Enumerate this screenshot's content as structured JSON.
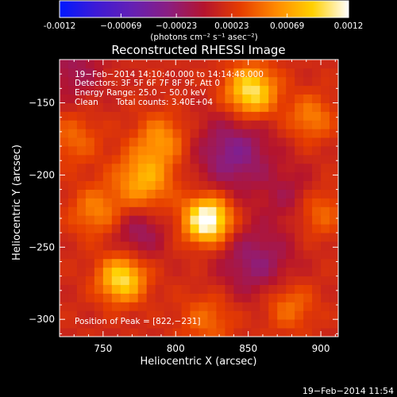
{
  "chart_data": {
    "type": "heatmap",
    "title": "Reconstructed RHESSI Image",
    "xlabel": "Heliocentric X (arcsec)",
    "ylabel": "Heliocentric Y (arcsec)",
    "xlim": [
      720,
      912
    ],
    "ylim": [
      -312,
      -120
    ],
    "x_ticks": [
      750,
      800,
      850,
      900
    ],
    "y_ticks": [
      -150,
      -200,
      -250,
      -300
    ],
    "colorbar": {
      "range": [
        -0.0012,
        0.0012
      ],
      "tick_values": [
        -0.0012,
        -0.00069,
        -0.00023,
        0.00023,
        0.00069,
        0.0012
      ],
      "tick_labels": [
        "-0.0012",
        "−0.00069",
        "−0.00023",
        "0.00023",
        "0.00069",
        "0.0012"
      ],
      "units": "(photons cm⁻² s⁻¹ asec⁻²)",
      "colors": [
        "#0018ff",
        "#3d1ad6",
        "#6420b4",
        "#8a1e82",
        "#b4142e",
        "#e63d00",
        "#ff8a00",
        "#ffd000",
        "#ffffff"
      ]
    },
    "annotations": {
      "time_range": "19−Feb−2014 14:10:40.000 to 14:14:48.000",
      "detectors": "Detectors: 3F 5F 6F 7F 8F 9F, Att 0",
      "energy": "Energy Range: 25.0 − 50.0 keV",
      "clean_label": "Clean",
      "total_counts": "Total counts: 3.40E+04",
      "peak": "Position of Peak = [822,−231]"
    },
    "sources": [
      {
        "x": 822,
        "y": -231,
        "amplitude": 0.0012,
        "sigma": 11
      },
      {
        "x": 852,
        "y": -142,
        "amplitude": 0.0009,
        "sigma": 12
      },
      {
        "x": 763,
        "y": -272,
        "amplitude": 0.00085,
        "sigma": 11
      },
      {
        "x": 778,
        "y": -203,
        "amplitude": 0.0006,
        "sigma": 14
      },
      {
        "x": 790,
        "y": -175,
        "amplitude": 0.00045,
        "sigma": 12
      },
      {
        "x": 745,
        "y": -225,
        "amplitude": 0.0004,
        "sigma": 12
      },
      {
        "x": 893,
        "y": -160,
        "amplitude": 0.0004,
        "sigma": 11
      },
      {
        "x": 898,
        "y": -225,
        "amplitude": 0.00035,
        "sigma": 12
      },
      {
        "x": 878,
        "y": -290,
        "amplitude": 0.00035,
        "sigma": 12
      },
      {
        "x": 822,
        "y": -300,
        "amplitude": 0.0003,
        "sigma": 13
      },
      {
        "x": 730,
        "y": -175,
        "amplitude": 0.0003,
        "sigma": 12
      },
      {
        "x": 840,
        "y": -185,
        "amplitude": -0.0005,
        "sigma": 18
      },
      {
        "x": 775,
        "y": -240,
        "amplitude": -0.00035,
        "sigma": 12
      },
      {
        "x": 730,
        "y": -128,
        "amplitude": -0.0003,
        "sigma": 14
      },
      {
        "x": 855,
        "y": -260,
        "amplitude": -0.0004,
        "sigma": 18
      },
      {
        "x": 880,
        "y": -215,
        "amplitude": -0.00025,
        "sigma": 14
      }
    ]
  },
  "footer": {
    "timestamp": "19−Feb−2014 11:54"
  }
}
